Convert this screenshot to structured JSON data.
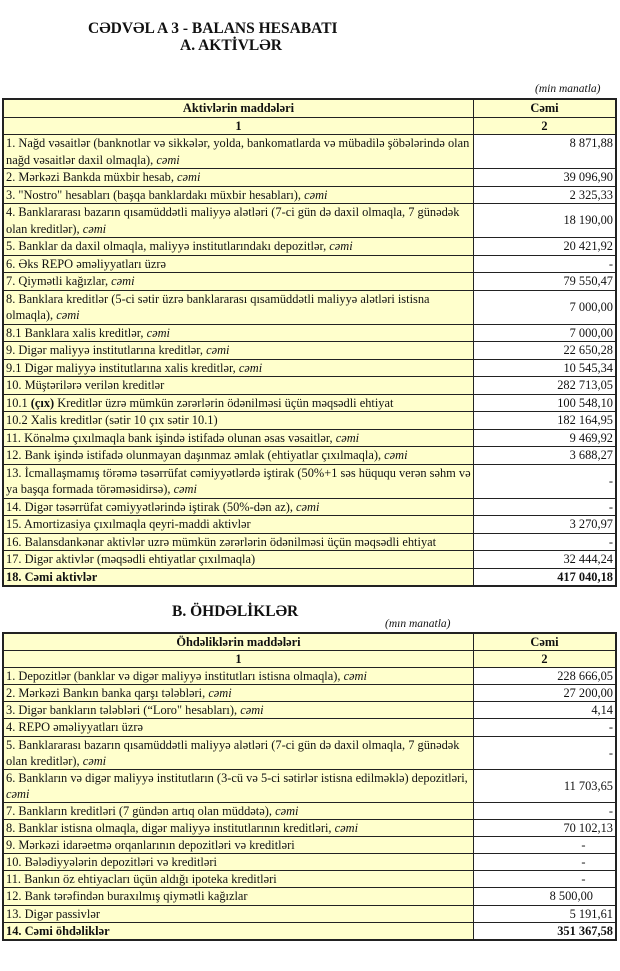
{
  "title": "CƏDVƏL A 3 - BALANS HESABATI",
  "section_a": {
    "title": "A. AKTİVLƏR",
    "unit": "(min manatla)",
    "col_headers": [
      "Aktivlərin   maddələri",
      "Cəmi"
    ],
    "col_numbers": [
      "1",
      "2"
    ],
    "rows": [
      {
        "label": "1. Nağd vəsaitlər (banknotlar və sikkələr, yolda, bankomatlarda və mübadilə şöbələrində olan nağd vəsaitlər daxil olmaqla), ",
        "em": "cəmi",
        "value": "8 871,88",
        "valign": "top"
      },
      {
        "label": "2. Mərkəzi Bankda müxbir hesab, ",
        "em": "cəmi",
        "value": "39 096,90"
      },
      {
        "label": "3. \"Nostro\" hesabları (başqa banklardakı müxbir hesabları), ",
        "em": "cəmi",
        "value": "2 325,33"
      },
      {
        "label": "4. Banklararası bazarın qısamüddətli maliyyə alətləri (7-ci gün də daxil olmaqla, 7 günədək olan kreditlər), ",
        "em": "cəmi",
        "value": "18 190,00"
      },
      {
        "label": "5. Banklar da daxil olmaqla, maliyyə institutlarındakı depozitlər, ",
        "em": "cəmi",
        "value": "20 421,92"
      },
      {
        "label": "6. Əks REPO əməliyyatları üzrə",
        "em": "",
        "value": "-"
      },
      {
        "label": "7. Qiymətli kağızlar, ",
        "em": "cəmi",
        "value": "79 550,47"
      },
      {
        "label": "8. Banklara kreditlər (5-ci sətir üzrə banklararası qısamüddətli maliyyə alətləri istisna olmaqla), ",
        "em": "cəmi",
        "value": "7 000,00"
      },
      {
        "label": "8.1 Banklara xalis kreditlər, ",
        "em": "cəmi",
        "value": "7 000,00"
      },
      {
        "label": "9. Digər maliyyə institutlarına kreditlər, ",
        "em": "cəmi",
        "value": "22 650,28"
      },
      {
        "label": "9.1 Digər maliyyə institutlarına xalis kreditlər, ",
        "em": "cəmi",
        "value": "10 545,34"
      },
      {
        "label": "10. Müştərilərə verilən kreditlər",
        "em": "",
        "value": "282 713,05"
      },
      {
        "pre": "10.1 ",
        "bold": "(çıx)",
        "label": " Kreditlər üzrə mümkün zərərlərin ödənilməsi üçün məqsədli ehtiyat",
        "em": "",
        "value": "100 548,10"
      },
      {
        "label": "10.2 Xalis kreditlər (sətir 10 çıx sətir 10.1)",
        "em": "",
        "value": "182 164,95"
      },
      {
        "label": "11. Könəlmə çıxılmaqla bank işində istifadə olunan əsas vəsaitlər, ",
        "em": "cəmi",
        "value": "9 469,92"
      },
      {
        "label": "12. Bank işində istifadə olunmayan daşınmaz əmlak (ehtiyatlar çıxılmaqla), ",
        "em": "cəmi",
        "value": "3 688,27"
      },
      {
        "label": "13. İcmallaşmamış törəmə təsərrüfat cəmiyyətlərdə iştirak (50%+1 səs hüququ verən səhm və ya başqa formada törəməsidirsə), ",
        "em": "cəmi",
        "value": "-"
      },
      {
        "label": "14. Digər təsərrüfat cəmiyyətlərində iştirak (50%-dən az), ",
        "em": "cəmi",
        "value": "-"
      },
      {
        "label": "15. Amortizasiya çıxılmaqla qeyri-maddi aktivlər",
        "em": "",
        "value": "3 270,97"
      },
      {
        "label": "16. Balansdankənar aktivlər uzrə mümkün zərərlərin ödənilməsi üçün məqsədli ehtiyat",
        "em": "",
        "value": "-"
      },
      {
        "label": "17. Digər aktivlər (məqsədli ehtiyatlar çıxılmaqla)",
        "em": "",
        "value": "32 444,24"
      },
      {
        "label": "18. Cəmi aktivlər",
        "em": "",
        "value": "417 040,18",
        "total": true
      }
    ]
  },
  "section_b": {
    "title": "B. ÖHDƏLİKLƏR",
    "unit": "(mın manatla)",
    "col_headers": [
      "Öhdəliklərin maddələri",
      "Cəmi"
    ],
    "col_numbers": [
      "1",
      "2"
    ],
    "rows": [
      {
        "label": "1. Depozitlər (banklar və digər maliyyə institutları istisna olmaqla), ",
        "em": "cəmi",
        "value": "228 666,05"
      },
      {
        "label": "2. Mərkəzi Bankın banka qarşı tələbləri, ",
        "em": "cəmi",
        "value": "27 200,00"
      },
      {
        "label": "3. Digər bankların tələbləri (“Loro\" hesabları), ",
        "em": "cəmi",
        "value": "4,14"
      },
      {
        "label": "4. REPO əməliyyatları  üzrə",
        "em": "",
        "value": "-"
      },
      {
        "label": "5. Banklararası bazarın qısamüddətli maliyyə alətləri (7-ci gün də daxil olmaqla, 7 günədək olan kreditlər), ",
        "em": "cəmi",
        "value": "-"
      },
      {
        "label": "6. Bankların və digər maliyyə institutların (3-cü və 5-ci sətirlər istisna edilməklə) depozitləri, ",
        "em": "cəmi",
        "value": "11 703,65"
      },
      {
        "label": "7. Bankların kreditləri (7 gündən artıq olan müddətə), ",
        "em": "cəmi",
        "value": "-"
      },
      {
        "label": "8. Banklar istisna olmaqla, digər maliyyə institutlarının kreditləri, ",
        "em": "cəmi",
        "value": "70 102,13"
      },
      {
        "label": "9. Mərkəzi idarəetmə orqanlarının depozitləri və kreditləri",
        "em": "",
        "value": "-",
        "align": "c"
      },
      {
        "label": "10. Bələdiyyələrin depozitləri və kreditləri",
        "em": "",
        "value": "-",
        "align": "c"
      },
      {
        "label": "11. Bankın öz ehtiyacları üçün aldığı ipoteka kreditləri",
        "em": "",
        "value": "-",
        "align": "c"
      },
      {
        "label": "12. Bank tərəfindən buraxılmış qiymətli kağızlar",
        "em": "",
        "value": "8 500,00",
        "align": "p"
      },
      {
        "label": "13. Digər passivlər",
        "em": "",
        "value": "5 191,61"
      },
      {
        "label": "14. Cəmi öhdəliklər",
        "em": "",
        "value": "351 367,58",
        "total": true
      }
    ]
  }
}
